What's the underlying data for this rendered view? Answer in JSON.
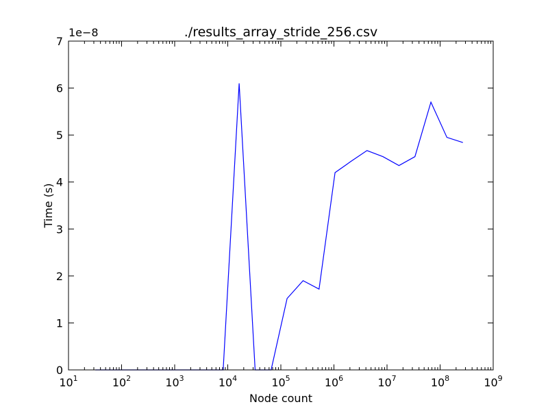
{
  "chart_data": {
    "type": "line",
    "title": "./results_array_stride_256.csv",
    "xlabel": "Node count",
    "ylabel": "Time (s)",
    "y_offset_label": "1e−8",
    "x_scale": "log",
    "xlim": [
      10,
      1000000000
    ],
    "ylim": [
      0,
      7
    ],
    "grid": false,
    "line_color": "#0000ff",
    "x_ticks": [
      {
        "base": "10",
        "exp": "1",
        "value": 10
      },
      {
        "base": "10",
        "exp": "2",
        "value": 100
      },
      {
        "base": "10",
        "exp": "3",
        "value": 1000
      },
      {
        "base": "10",
        "exp": "4",
        "value": 10000
      },
      {
        "base": "10",
        "exp": "5",
        "value": 100000
      },
      {
        "base": "10",
        "exp": "6",
        "value": 1000000
      },
      {
        "base": "10",
        "exp": "7",
        "value": 10000000
      },
      {
        "base": "10",
        "exp": "8",
        "value": 100000000
      },
      {
        "base": "10",
        "exp": "9",
        "value": 1000000000
      }
    ],
    "y_ticks": [
      "0",
      "1",
      "2",
      "3",
      "4",
      "5",
      "6",
      "7"
    ],
    "series": [
      {
        "x": [
          32,
          64,
          128,
          256,
          512,
          1024,
          2048,
          4096,
          8192,
          16384,
          32768,
          65536,
          131072,
          262144,
          524288,
          1048576,
          2097152,
          4194304,
          8388608,
          16777216,
          33554432,
          67108864,
          134217728,
          268435456
        ],
        "y": [
          0,
          0,
          0,
          0,
          0,
          0,
          0,
          0,
          0,
          6.1,
          0,
          0,
          1.52,
          1.9,
          1.72,
          4.2,
          4.44,
          4.67,
          4.54,
          4.35,
          4.54,
          5.7,
          4.95,
          4.84
        ]
      }
    ]
  }
}
